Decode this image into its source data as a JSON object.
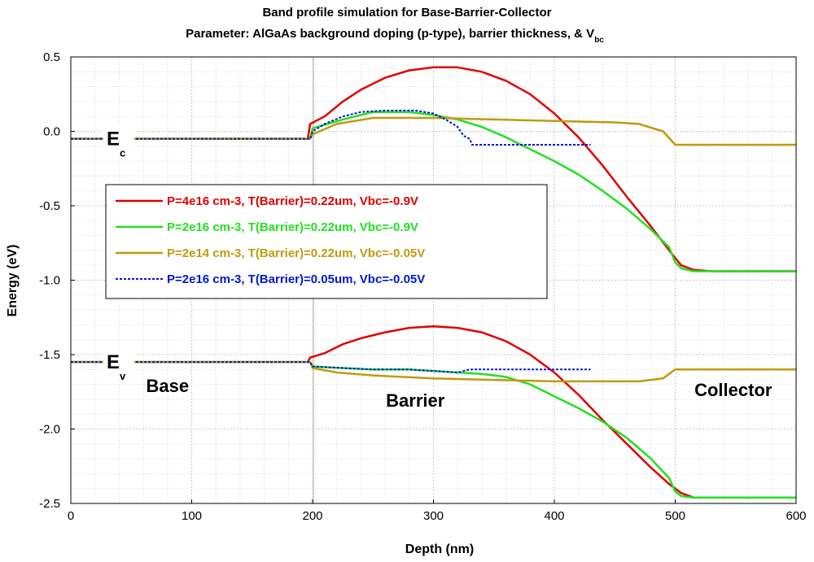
{
  "chart_data": {
    "type": "line",
    "title": "Band profile simulation for Base-Barrier-Collector",
    "subtitle": "Parameter: AlGaAs background doping (p-type), barrier thickness, & V",
    "subtitle_subscript": "bc",
    "xlabel": "Depth (nm)",
    "ylabel": "Energy (eV)",
    "xlim": [
      0,
      600
    ],
    "ylim": [
      -2.5,
      0.5
    ],
    "xticks": [
      0,
      100,
      200,
      300,
      400,
      500,
      600
    ],
    "xtick_labels": [
      "0",
      "100",
      "200",
      "300",
      "400",
      "500",
      "600"
    ],
    "yticks": [
      0.5,
      0.0,
      -0.5,
      -1.0,
      -1.5,
      -2.0,
      -2.5
    ],
    "ytick_labels": [
      "0.5",
      "0.0",
      "-0.5",
      "-1.0",
      "-1.5",
      "-2.0",
      "-2.5"
    ],
    "grid": true,
    "legend_position": "center-left",
    "annotations": [
      {
        "text": "E",
        "sub": "c",
        "x": 35,
        "y": -0.05
      },
      {
        "text": "E",
        "sub": "v",
        "x": 35,
        "y": -1.55
      },
      {
        "text": "Base",
        "x": 80,
        "y": -1.75
      },
      {
        "text": "Barrier",
        "x": 285,
        "y": -1.85
      },
      {
        "text": "Collector",
        "x": 548,
        "y": -1.78
      }
    ],
    "series": [
      {
        "name": "P=4e16 cm-3, T(Barrier)=0.22um, Vbc=-0.9V",
        "color": "#e00000",
        "dash": false,
        "segments": [
          [
            [
              0,
              -0.05
            ],
            [
              196,
              -0.05
            ],
            [
              198,
              0.05
            ],
            [
              210,
              0.1
            ],
            [
              225,
              0.2
            ],
            [
              240,
              0.28
            ],
            [
              260,
              0.36
            ],
            [
              280,
              0.41
            ],
            [
              300,
              0.43
            ],
            [
              320,
              0.43
            ],
            [
              340,
              0.4
            ],
            [
              360,
              0.34
            ],
            [
              380,
              0.25
            ],
            [
              400,
              0.12
            ],
            [
              420,
              -0.04
            ],
            [
              440,
              -0.23
            ],
            [
              460,
              -0.44
            ],
            [
              480,
              -0.64
            ],
            [
              495,
              -0.8
            ],
            [
              500,
              -0.85
            ],
            [
              505,
              -0.9
            ],
            [
              515,
              -0.93
            ],
            [
              530,
              -0.94
            ],
            [
              600,
              -0.94
            ]
          ],
          [
            [
              0,
              -1.55
            ],
            [
              196,
              -1.55
            ],
            [
              198,
              -1.52
            ],
            [
              210,
              -1.49
            ],
            [
              225,
              -1.43
            ],
            [
              240,
              -1.39
            ],
            [
              260,
              -1.35
            ],
            [
              280,
              -1.32
            ],
            [
              300,
              -1.31
            ],
            [
              320,
              -1.32
            ],
            [
              340,
              -1.35
            ],
            [
              360,
              -1.41
            ],
            [
              380,
              -1.5
            ],
            [
              400,
              -1.62
            ],
            [
              420,
              -1.77
            ],
            [
              440,
              -1.94
            ],
            [
              460,
              -2.1
            ],
            [
              480,
              -2.26
            ],
            [
              495,
              -2.37
            ],
            [
              500,
              -2.4
            ],
            [
              505,
              -2.43
            ],
            [
              515,
              -2.46
            ],
            [
              530,
              -2.46
            ],
            [
              600,
              -2.46
            ]
          ]
        ]
      },
      {
        "name": "P=2e16 cm-3, T(Barrier)=0.22um, Vbc=-0.9V",
        "color": "#22e022",
        "dash": false,
        "segments": [
          [
            [
              0,
              -0.05
            ],
            [
              198,
              -0.05
            ],
            [
              200,
              0.02
            ],
            [
              225,
              0.08
            ],
            [
              250,
              0.13
            ],
            [
              280,
              0.13
            ],
            [
              300,
              0.11
            ],
            [
              320,
              0.08
            ],
            [
              340,
              0.03
            ],
            [
              360,
              -0.04
            ],
            [
              380,
              -0.12
            ],
            [
              400,
              -0.2
            ],
            [
              420,
              -0.29
            ],
            [
              440,
              -0.4
            ],
            [
              460,
              -0.52
            ],
            [
              480,
              -0.66
            ],
            [
              495,
              -0.78
            ],
            [
              500,
              -0.88
            ],
            [
              505,
              -0.92
            ],
            [
              515,
              -0.94
            ],
            [
              600,
              -0.94
            ]
          ],
          [
            [
              0,
              -1.55
            ],
            [
              198,
              -1.55
            ],
            [
              200,
              -1.58
            ],
            [
              225,
              -1.59
            ],
            [
              250,
              -1.6
            ],
            [
              280,
              -1.6
            ],
            [
              300,
              -1.61
            ],
            [
              320,
              -1.62
            ],
            [
              340,
              -1.63
            ],
            [
              360,
              -1.65
            ],
            [
              380,
              -1.7
            ],
            [
              400,
              -1.78
            ],
            [
              420,
              -1.86
            ],
            [
              440,
              -1.95
            ],
            [
              460,
              -2.06
            ],
            [
              480,
              -2.2
            ],
            [
              495,
              -2.33
            ],
            [
              500,
              -2.42
            ],
            [
              505,
              -2.45
            ],
            [
              515,
              -2.46
            ],
            [
              600,
              -2.46
            ]
          ]
        ]
      },
      {
        "name": "P=2e14 cm-3, T(Barrier)=0.22um, Vbc=-0.05V",
        "color": "#c09a10",
        "dash": false,
        "segments": [
          [
            [
              0,
              -0.05
            ],
            [
              198,
              -0.05
            ],
            [
              200,
              -0.02
            ],
            [
              220,
              0.05
            ],
            [
              250,
              0.09
            ],
            [
              300,
              0.09
            ],
            [
              350,
              0.08
            ],
            [
              400,
              0.07
            ],
            [
              450,
              0.06
            ],
            [
              470,
              0.05
            ],
            [
              490,
              0.0
            ],
            [
              500,
              -0.09
            ],
            [
              600,
              -0.09
            ]
          ],
          [
            [
              0,
              -1.55
            ],
            [
              198,
              -1.55
            ],
            [
              200,
              -1.59
            ],
            [
              220,
              -1.62
            ],
            [
              250,
              -1.64
            ],
            [
              300,
              -1.66
            ],
            [
              350,
              -1.67
            ],
            [
              400,
              -1.68
            ],
            [
              450,
              -1.68
            ],
            [
              470,
              -1.68
            ],
            [
              490,
              -1.66
            ],
            [
              500,
              -1.6
            ],
            [
              600,
              -1.6
            ]
          ]
        ]
      },
      {
        "name": "P=2e16 cm-3, T(Barrier)=0.05um, Vbc=-0.05V",
        "color": "#0018d0",
        "dash": true,
        "segments": [
          [
            [
              0,
              -0.05
            ],
            [
              198,
              -0.05
            ],
            [
              200,
              0.0
            ],
            [
              210,
              0.05
            ],
            [
              225,
              0.1
            ],
            [
              240,
              0.13
            ],
            [
              260,
              0.14
            ],
            [
              285,
              0.14
            ],
            [
              300,
              0.12
            ],
            [
              310,
              0.08
            ],
            [
              320,
              0.03
            ],
            [
              325,
              -0.03
            ],
            [
              330,
              -0.05
            ],
            [
              332,
              -0.09
            ],
            [
              340,
              -0.09
            ],
            [
              430,
              -0.09
            ]
          ],
          [
            [
              0,
              -1.55
            ],
            [
              198,
              -1.55
            ],
            [
              200,
              -1.58
            ],
            [
              225,
              -1.59
            ],
            [
              250,
              -1.6
            ],
            [
              280,
              -1.6
            ],
            [
              300,
              -1.61
            ],
            [
              320,
              -1.62
            ],
            [
              330,
              -1.6
            ],
            [
              430,
              -1.6
            ]
          ]
        ]
      }
    ]
  }
}
